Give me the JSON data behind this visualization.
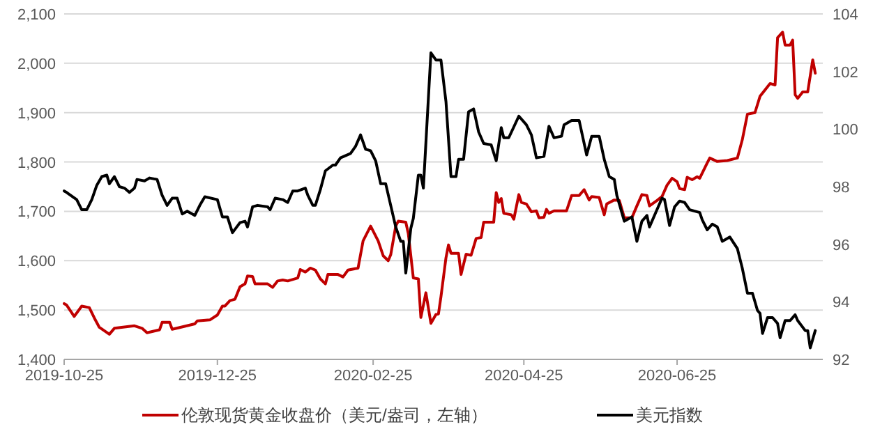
{
  "chart_data": {
    "type": "line",
    "xlim": [
      "2019-10-25",
      "2020-08-22"
    ],
    "xticks": [
      "2019-10-25",
      "2019-12-25",
      "2020-02-25",
      "2020-04-25",
      "2020-06-25"
    ],
    "ylim": [
      1400,
      2100
    ],
    "yticks": [
      {
        "value": 1400,
        "label": "1,400"
      },
      {
        "value": 1500,
        "label": "1,500"
      },
      {
        "value": 1600,
        "label": "1,600"
      },
      {
        "value": 1700,
        "label": "1,700"
      },
      {
        "value": 1800,
        "label": "1,800"
      },
      {
        "value": 1900,
        "label": "1,900"
      },
      {
        "value": 2000,
        "label": "2,000"
      },
      {
        "value": 2100,
        "label": "2,100"
      }
    ],
    "y2lim": [
      92,
      104
    ],
    "y2ticks": [
      92,
      94,
      96,
      98,
      100,
      102,
      104
    ],
    "grid": "y",
    "legend": "bottom",
    "line_style": "solid",
    "marker": "none",
    "series": [
      {
        "name": "伦敦现货黄金收盘价（美元/盎司，左轴）",
        "color": "#c00000",
        "x": [
          "2019-10-25",
          "2019-10-26",
          "2019-10-29",
          "2019-11-01",
          "2019-11-04",
          "2019-11-06",
          "2019-11-08",
          "2019-11-12",
          "2019-11-14",
          "2019-11-22",
          "2019-11-25",
          "2019-11-27",
          "2019-12-02",
          "2019-12-03",
          "2019-12-06",
          "2019-12-07",
          "2019-12-12",
          "2019-12-16",
          "2019-12-17",
          "2019-12-22",
          "2019-12-25",
          "2019-12-27",
          "2019-12-28",
          "2019-12-30",
          "2020-01-01",
          "2020-01-03",
          "2020-01-05",
          "2020-01-06",
          "2020-01-08",
          "2020-01-09",
          "2020-01-14",
          "2020-01-16",
          "2020-01-18",
          "2020-01-20",
          "2020-01-22",
          "2020-01-26",
          "2020-01-27",
          "2020-01-29",
          "2020-01-31",
          "2020-02-02",
          "2020-02-04",
          "2020-02-06",
          "2020-02-07",
          "2020-02-11",
          "2020-02-13",
          "2020-02-15",
          "2020-02-19",
          "2020-02-21",
          "2020-02-24",
          "2020-02-27",
          "2020-02-29",
          "2020-03-02",
          "2020-03-03",
          "2020-03-05",
          "2020-03-06",
          "2020-03-09",
          "2020-03-10",
          "2020-03-12",
          "2020-03-14",
          "2020-03-15",
          "2020-03-17",
          "2020-03-19",
          "2020-03-21",
          "2020-03-22",
          "2020-03-23",
          "2020-03-25",
          "2020-03-26",
          "2020-03-27",
          "2020-03-30",
          "2020-03-31",
          "2020-04-02",
          "2020-04-04",
          "2020-04-06",
          "2020-04-08",
          "2020-04-09",
          "2020-04-13",
          "2020-04-14",
          "2020-04-15",
          "2020-04-16",
          "2020-04-17",
          "2020-04-20",
          "2020-04-21",
          "2020-04-23",
          "2020-04-24",
          "2020-04-26",
          "2020-04-28",
          "2020-04-30",
          "2020-05-01",
          "2020-05-03",
          "2020-05-04",
          "2020-05-05",
          "2020-05-07",
          "2020-05-12",
          "2020-05-14",
          "2020-05-17",
          "2020-05-19",
          "2020-05-21",
          "2020-05-22",
          "2020-05-25",
          "2020-05-27",
          "2020-05-28",
          "2020-05-31",
          "2020-06-02",
          "2020-06-04",
          "2020-06-07",
          "2020-06-09",
          "2020-06-11",
          "2020-06-13",
          "2020-06-14",
          "2020-06-17",
          "2020-06-19",
          "2020-06-21",
          "2020-06-23",
          "2020-06-25",
          "2020-06-26",
          "2020-06-28",
          "2020-06-29",
          "2020-07-01",
          "2020-07-03",
          "2020-07-04",
          "2020-07-07",
          "2020-07-08",
          "2020-07-11",
          "2020-07-15",
          "2020-07-19",
          "2020-07-21",
          "2020-07-23",
          "2020-07-26",
          "2020-07-28",
          "2020-08-01",
          "2020-08-03",
          "2020-08-04",
          "2020-08-06",
          "2020-08-07",
          "2020-08-09",
          "2020-08-10",
          "2020-08-11",
          "2020-08-12",
          "2020-08-14",
          "2020-08-16",
          "2020-08-18",
          "2020-08-19"
        ],
        "values": [
          1513,
          1510,
          1487,
          1508,
          1505,
          1484,
          1465,
          1451,
          1463,
          1468,
          1463,
          1454,
          1460,
          1475,
          1475,
          1461,
          1467,
          1472,
          1478,
          1480,
          1490,
          1508,
          1508,
          1519,
          1522,
          1547,
          1553,
          1569,
          1568,
          1553,
          1553,
          1546,
          1559,
          1561,
          1559,
          1565,
          1582,
          1577,
          1585,
          1581,
          1563,
          1553,
          1572,
          1572,
          1567,
          1581,
          1585,
          1640,
          1670,
          1640,
          1610,
          1600,
          1612,
          1670,
          1680,
          1678,
          1655,
          1565,
          1563,
          1485,
          1535,
          1473,
          1491,
          1492,
          1527,
          1606,
          1632,
          1615,
          1615,
          1572,
          1613,
          1611,
          1645,
          1647,
          1678,
          1678,
          1738,
          1718,
          1726,
          1696,
          1693,
          1684,
          1734,
          1718,
          1715,
          1699,
          1701,
          1687,
          1688,
          1704,
          1696,
          1701,
          1701,
          1732,
          1732,
          1744,
          1723,
          1730,
          1728,
          1693,
          1715,
          1723,
          1722,
          1687,
          1687,
          1711,
          1734,
          1732,
          1711,
          1722,
          1730,
          1753,
          1767,
          1760,
          1746,
          1744,
          1769,
          1764,
          1770,
          1767,
          1798,
          1808,
          1801,
          1803,
          1808,
          1846,
          1897,
          1900,
          1933,
          1959,
          1956,
          2052,
          2063,
          2037,
          2037,
          2047,
          1936,
          1929,
          1942,
          1942,
          2007,
          1980
        ]
      },
      {
        "name": "美元指数",
        "color": "#000000",
        "axis": "y2",
        "x": [
          "2019-10-25",
          "2019-10-26",
          "2019-10-30",
          "2019-11-01",
          "2019-11-03",
          "2019-11-05",
          "2019-11-07",
          "2019-11-09",
          "2019-11-11",
          "2019-11-12",
          "2019-11-14",
          "2019-11-16",
          "2019-11-18",
          "2019-11-20",
          "2019-11-22",
          "2019-11-23",
          "2019-11-26",
          "2019-11-28",
          "2019-12-01",
          "2019-12-03",
          "2019-12-05",
          "2019-12-07",
          "2019-12-09",
          "2019-12-11",
          "2019-12-13",
          "2019-12-16",
          "2019-12-18",
          "2019-12-20",
          "2019-12-25",
          "2019-12-27",
          "2019-12-29",
          "2019-12-31",
          "2020-01-03",
          "2020-01-05",
          "2020-01-06",
          "2020-01-08",
          "2020-01-10",
          "2020-01-14",
          "2020-01-15",
          "2020-01-17",
          "2020-01-20",
          "2020-01-22",
          "2020-01-24",
          "2020-01-26",
          "2020-01-29",
          "2020-01-30",
          "2020-02-01",
          "2020-02-02",
          "2020-02-04",
          "2020-02-06",
          "2020-02-09",
          "2020-02-10",
          "2020-02-12",
          "2020-02-16",
          "2020-02-18",
          "2020-02-20",
          "2020-02-22",
          "2020-02-24",
          "2020-02-26",
          "2020-02-28",
          "2020-03-01",
          "2020-03-03",
          "2020-03-05",
          "2020-03-07",
          "2020-03-08",
          "2020-03-09",
          "2020-03-11",
          "2020-03-12",
          "2020-03-14",
          "2020-03-15",
          "2020-03-16",
          "2020-03-19",
          "2020-03-21",
          "2020-03-23",
          "2020-03-25",
          "2020-03-27",
          "2020-03-29",
          "2020-03-30",
          "2020-04-01",
          "2020-04-03",
          "2020-04-05",
          "2020-04-07",
          "2020-04-09",
          "2020-04-12",
          "2020-04-14",
          "2020-04-16",
          "2020-04-17",
          "2020-04-19",
          "2020-04-23",
          "2020-04-26",
          "2020-04-28",
          "2020-04-30",
          "2020-05-03",
          "2020-05-05",
          "2020-05-07",
          "2020-05-10",
          "2020-05-11",
          "2020-05-14",
          "2020-05-17",
          "2020-05-20",
          "2020-05-22",
          "2020-05-25",
          "2020-05-27",
          "2020-05-29",
          "2020-05-31",
          "2020-06-01",
          "2020-06-04",
          "2020-06-07",
          "2020-06-09",
          "2020-06-11",
          "2020-06-13",
          "2020-06-14",
          "2020-06-17",
          "2020-06-19",
          "2020-06-20",
          "2020-06-22",
          "2020-06-24",
          "2020-06-26",
          "2020-06-28",
          "2020-06-30",
          "2020-07-04",
          "2020-07-05",
          "2020-07-07",
          "2020-07-09",
          "2020-07-11",
          "2020-07-13",
          "2020-07-16",
          "2020-07-19",
          "2020-07-21",
          "2020-07-23",
          "2020-07-25",
          "2020-07-27",
          "2020-07-28",
          "2020-07-29",
          "2020-07-31",
          "2020-08-02",
          "2020-08-04",
          "2020-08-05",
          "2020-08-07",
          "2020-08-09",
          "2020-08-11",
          "2020-08-12",
          "2020-08-15",
          "2020-08-16",
          "2020-08-17",
          "2020-08-19"
        ],
        "values": [
          97.85,
          97.8,
          97.55,
          97.2,
          97.2,
          97.55,
          98.05,
          98.35,
          98.4,
          98.1,
          98.35,
          98.0,
          97.95,
          97.8,
          97.95,
          98.25,
          98.2,
          98.3,
          98.25,
          97.7,
          97.35,
          97.6,
          97.6,
          97.05,
          97.15,
          97.0,
          97.35,
          97.65,
          97.55,
          96.95,
          96.95,
          96.4,
          96.75,
          96.8,
          96.6,
          97.3,
          97.35,
          97.3,
          97.2,
          97.6,
          97.55,
          97.45,
          97.85,
          97.85,
          97.95,
          97.7,
          97.35,
          97.35,
          97.9,
          98.55,
          98.75,
          98.75,
          99.0,
          99.15,
          99.4,
          99.8,
          99.3,
          99.25,
          98.9,
          98.1,
          98.1,
          97.35,
          96.6,
          96.1,
          96.1,
          95.0,
          96.55,
          96.9,
          98.4,
          98.4,
          97.95,
          102.65,
          102.4,
          102.4,
          100.95,
          98.35,
          98.35,
          98.95,
          98.95,
          100.6,
          100.7,
          99.9,
          99.5,
          99.45,
          98.9,
          100.05,
          99.7,
          99.7,
          100.45,
          100.15,
          99.8,
          99.0,
          99.05,
          100.1,
          99.7,
          99.75,
          100.15,
          100.3,
          100.3,
          99.1,
          99.75,
          99.75,
          98.95,
          98.35,
          98.25,
          97.7,
          96.8,
          96.95,
          96.1,
          96.8,
          97.0,
          96.6,
          97.2,
          97.6,
          97.55,
          96.65,
          97.3,
          97.5,
          97.45,
          97.2,
          97.1,
          96.85,
          96.5,
          96.7,
          96.6,
          96.1,
          96.25,
          95.85,
          95.15,
          94.3,
          94.3,
          93.7,
          93.6,
          92.9,
          93.45,
          93.45,
          93.25,
          92.75,
          93.35,
          93.35,
          93.55,
          93.35,
          93.0,
          93.0,
          92.4,
          93.0
        ]
      }
    ]
  }
}
